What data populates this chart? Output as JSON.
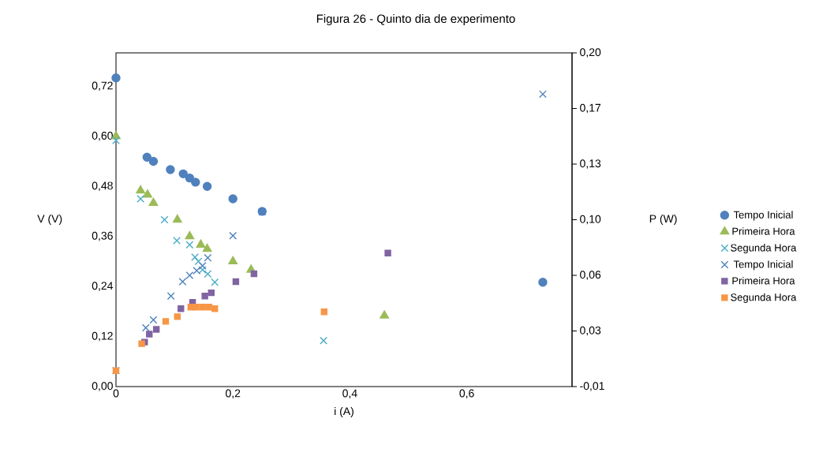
{
  "chart_data": {
    "type": "scatter",
    "title": "Figura 26 - Quinto dia de experimento",
    "xlabel": "i (A)",
    "ylabel": "V (V)",
    "y2label": "P (W)",
    "xlim": [
      0,
      0.78
    ],
    "xticks": [
      0,
      {
        "value": 0.2,
        "label": "0,2"
      },
      {
        "value": 0.4,
        "label": "0,4"
      },
      {
        "value": 0.6,
        "label": "0,6"
      }
    ],
    "ylim": [
      0,
      0.8
    ],
    "yticks": [
      {
        "value": 0,
        "label": "0,00"
      },
      {
        "value": 0.12,
        "label": "0,12"
      },
      {
        "value": 0.24,
        "label": "0,24"
      },
      {
        "value": 0.36,
        "label": "0,36"
      },
      {
        "value": 0.48,
        "label": "0,48"
      },
      {
        "value": 0.6,
        "label": "0,60"
      },
      {
        "value": 0.72,
        "label": "0,72"
      }
    ],
    "y2lim": [
      -0.01,
      0.2
    ],
    "y2ticks": [
      {
        "value": -0.01,
        "label": "-0,01"
      },
      {
        "value": 0.025,
        "label": "0,03"
      },
      {
        "value": 0.06,
        "label": "0,06"
      },
      {
        "value": 0.095,
        "label": "0,10"
      },
      {
        "value": 0.13,
        "label": "0,13"
      },
      {
        "value": 0.165,
        "label": "0,17"
      },
      {
        "value": 0.2,
        "label": "0,20"
      }
    ],
    "legend": "right",
    "series": [
      {
        "name": "Tempo Inicial",
        "color": "#4f81bd",
        "marker": "circle",
        "x": [
          0,
          0.053,
          0.064,
          0.093,
          0.115,
          0.126,
          0.136,
          0.156,
          0.2,
          0.25,
          0.73
        ],
        "values": [
          0.74,
          0.55,
          0.54,
          0.52,
          0.51,
          0.5,
          0.49,
          0.48,
          0.45,
          0.42,
          0.25
        ]
      },
      {
        "name": "Primeira Hora",
        "color": "#9bbb59",
        "marker": "triangle",
        "x": [
          0,
          0.042,
          0.054,
          0.064,
          0.105,
          0.126,
          0.145,
          0.156,
          0.2,
          0.231,
          0.459
        ],
        "values": [
          0.6,
          0.47,
          0.46,
          0.44,
          0.4,
          0.36,
          0.34,
          0.33,
          0.3,
          0.28,
          0.17
        ]
      },
      {
        "name": "Segunda Hora",
        "color": "#4bacc6",
        "marker": "cross",
        "x": [
          0,
          0.042,
          0.083,
          0.104,
          0.126,
          0.135,
          0.141,
          0.148,
          0.157,
          0.169,
          0.355
        ],
        "values": [
          0.59,
          0.45,
          0.4,
          0.35,
          0.34,
          0.31,
          0.3,
          0.28,
          0.27,
          0.25,
          0.11
        ]
      },
      {
        "name": "Tempo Inicial",
        "color": "#4f81bd",
        "marker": "cross",
        "axis": "y2",
        "x": [
          0,
          0.051,
          0.064,
          0.094,
          0.114,
          0.126,
          0.138,
          0.148,
          0.157,
          0.2,
          0.25,
          0.73
        ],
        "values": [
          0.0,
          0.027,
          0.032,
          0.047,
          0.056,
          0.06,
          0.063,
          0.066,
          0.071,
          0.085,
          0.1,
          0.174
        ]
      },
      {
        "name": "Primeira Hora",
        "color": "#8064a2",
        "marker": "square",
        "axis": "y2",
        "x": [
          0.049,
          0.057,
          0.069,
          0.111,
          0.131,
          0.152,
          0.163,
          0.205,
          0.236,
          0.465
        ],
        "values": [
          0.018,
          0.023,
          0.026,
          0.039,
          0.043,
          0.047,
          0.049,
          0.056,
          0.061,
          0.074
        ]
      },
      {
        "name": "Segunda Hora",
        "color": "#f79646",
        "marker": "square",
        "axis": "y2",
        "x": [
          0,
          0.044,
          0.085,
          0.105,
          0.128,
          0.137,
          0.148,
          0.159,
          0.169,
          0.356
        ],
        "values": [
          0.0,
          0.017,
          0.031,
          0.034,
          0.04,
          0.04,
          0.04,
          0.04,
          0.039,
          0.037
        ]
      }
    ]
  }
}
